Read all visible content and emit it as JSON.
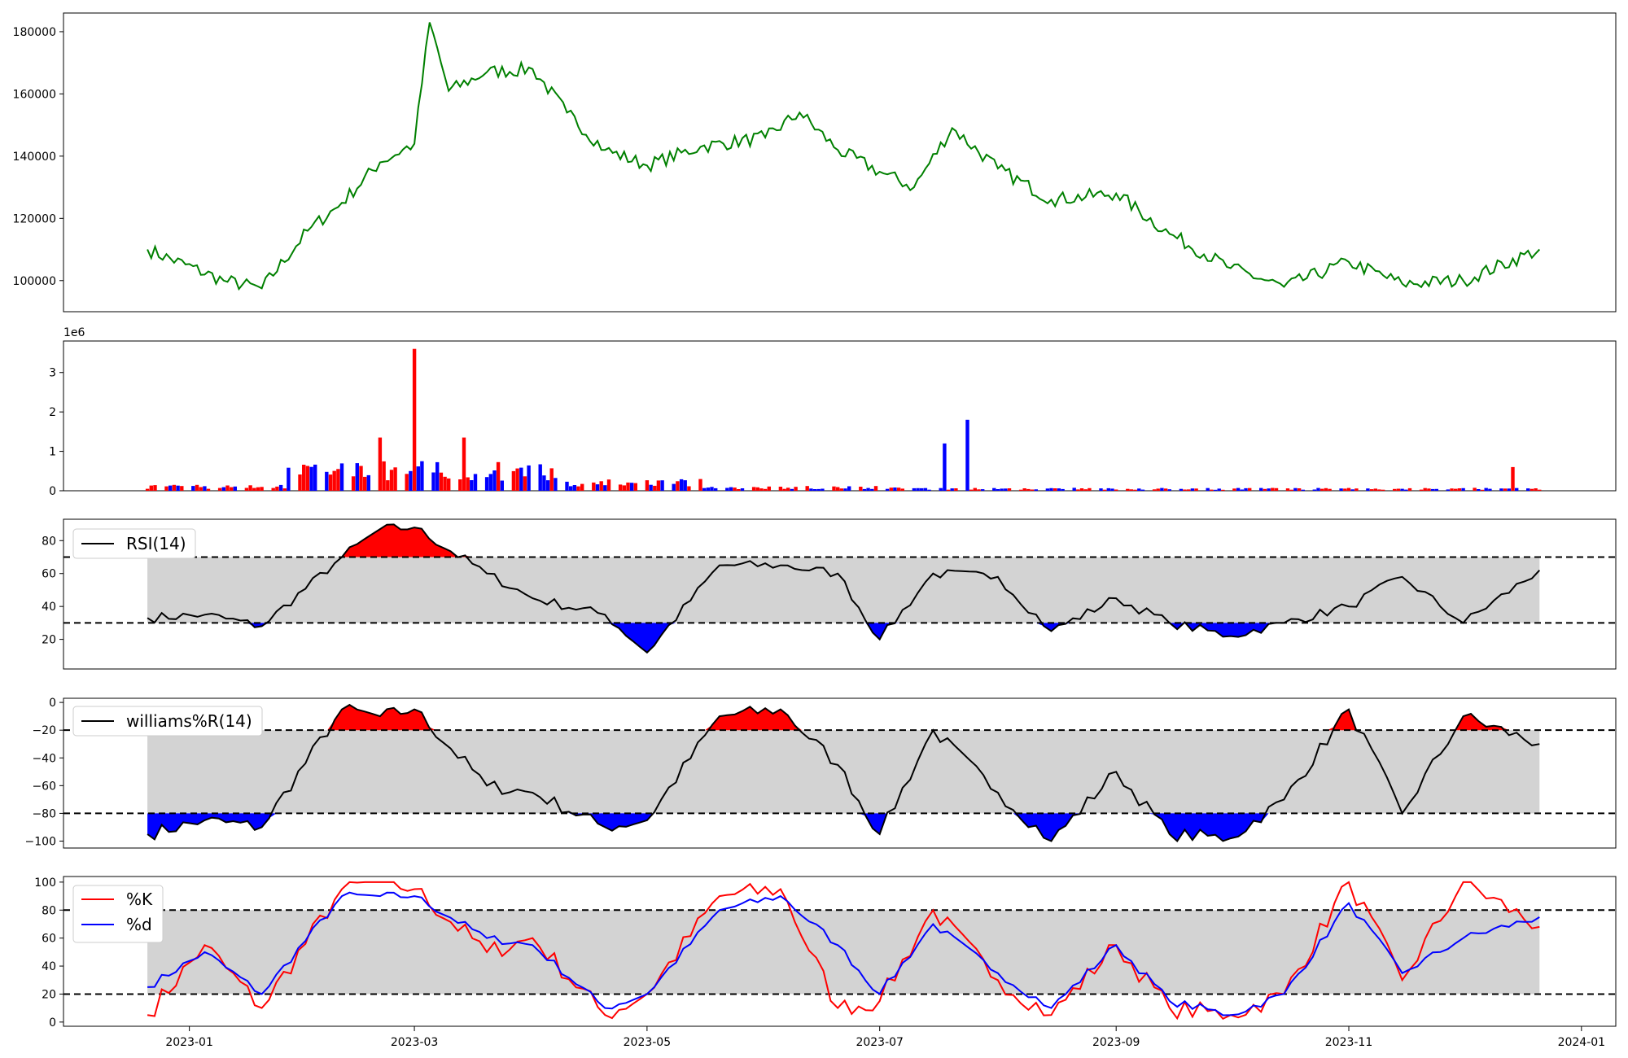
{
  "chart_data": [
    {
      "panel": "price",
      "type": "line",
      "x_dates": [
        "2022-12-21",
        "2023-01-10",
        "2023-01-20",
        "2023-02-01",
        "2023-02-10",
        "2023-02-20",
        "2023-03-01",
        "2023-03-05",
        "2023-03-10",
        "2023-03-20",
        "2023-04-01",
        "2023-04-10",
        "2023-04-20",
        "2023-05-01",
        "2023-05-15",
        "2023-06-01",
        "2023-06-10",
        "2023-06-20",
        "2023-07-01",
        "2023-07-10",
        "2023-07-20",
        "2023-08-01",
        "2023-08-15",
        "2023-09-01",
        "2023-09-15",
        "2023-10-01",
        "2023-10-15",
        "2023-11-01",
        "2023-11-15",
        "2023-12-01",
        "2023-12-21"
      ],
      "values": [
        110000,
        100000,
        97500,
        116000,
        125000,
        138000,
        144000,
        183000,
        161000,
        167000,
        168000,
        154000,
        142000,
        137000,
        143000,
        146000,
        154000,
        142000,
        135000,
        130000,
        149000,
        136000,
        126000,
        128000,
        115000,
        104000,
        98000,
        106000,
        99000,
        100000,
        110000
      ],
      "color": "#008000",
      "ylim": [
        90000,
        186000
      ],
      "yticks": [
        "100000",
        "120000",
        "140000",
        "160000",
        "180000"
      ]
    },
    {
      "panel": "volume",
      "type": "bar",
      "offset_text": "1e6",
      "ylim": [
        0,
        3.8
      ],
      "yticks": [
        "0",
        "1",
        "2",
        "3"
      ],
      "colors": {
        "up": "#ff0000",
        "down": "#0000ff"
      },
      "highlights": [
        {
          "date": "2023-03-01",
          "value": 3.6,
          "color": "#ff0000"
        },
        {
          "date": "2023-07-24",
          "value": 1.8,
          "color": "#0000ff"
        },
        {
          "date": "2023-07-18",
          "value": 1.2,
          "color": "#0000ff"
        },
        {
          "date": "2023-02-20",
          "value": 1.35,
          "color": "#ff0000"
        },
        {
          "date": "2023-03-14",
          "value": 1.35,
          "color": "#ff0000"
        },
        {
          "date": "2023-12-14",
          "value": 0.6,
          "color": "#ff0000"
        }
      ]
    },
    {
      "panel": "rsi",
      "type": "line",
      "legend": "RSI(14)",
      "upper": 70,
      "lower": 30,
      "ylim": [
        2,
        93
      ],
      "yticks": [
        "20",
        "40",
        "60",
        "80"
      ],
      "x_dates": [
        "2022-12-21",
        "2023-01-05",
        "2023-01-20",
        "2023-02-10",
        "2023-02-20",
        "2023-03-01",
        "2023-03-20",
        "2023-04-01",
        "2023-04-20",
        "2023-05-01",
        "2023-05-20",
        "2023-06-05",
        "2023-06-20",
        "2023-07-01",
        "2023-07-15",
        "2023-08-01",
        "2023-08-15",
        "2023-09-01",
        "2023-09-15",
        "2023-10-01",
        "2023-10-15",
        "2023-11-01",
        "2023-11-15",
        "2023-12-01",
        "2023-12-21"
      ],
      "values": [
        33,
        35,
        28,
        70,
        87,
        88,
        60,
        45,
        35,
        12,
        65,
        65,
        60,
        20,
        60,
        58,
        25,
        45,
        30,
        22,
        30,
        40,
        58,
        30,
        62
      ],
      "fill_colors": {
        "above": "#ff0000",
        "below": "#0000ff",
        "band": "#d3d3d3"
      }
    },
    {
      "panel": "williams",
      "type": "line",
      "legend": "williams%R(14)",
      "upper": -20,
      "lower": -80,
      "ylim": [
        -105,
        3
      ],
      "yticks": [
        "0",
        "−20",
        "−40",
        "−60",
        "−80",
        "−100"
      ],
      "x_dates": [
        "2022-12-21",
        "2023-01-05",
        "2023-01-20",
        "2023-02-10",
        "2023-02-20",
        "2023-03-01",
        "2023-03-20",
        "2023-04-01",
        "2023-04-20",
        "2023-05-01",
        "2023-05-20",
        "2023-06-05",
        "2023-06-20",
        "2023-07-01",
        "2023-07-15",
        "2023-08-01",
        "2023-08-15",
        "2023-09-01",
        "2023-09-15",
        "2023-10-01",
        "2023-10-15",
        "2023-11-01",
        "2023-11-15",
        "2023-12-01",
        "2023-12-21"
      ],
      "values": [
        -95,
        -85,
        -90,
        -5,
        -10,
        -5,
        -60,
        -65,
        -90,
        -85,
        -10,
        -5,
        -45,
        -95,
        -20,
        -65,
        -100,
        -50,
        -95,
        -98,
        -70,
        -5,
        -80,
        -10,
        -30
      ],
      "fill_colors": {
        "above": "#ff0000",
        "below": "#0000ff",
        "band": "#d3d3d3"
      }
    },
    {
      "panel": "stochastic",
      "type": "line",
      "legend": [
        "%K",
        "%d"
      ],
      "upper": 80,
      "lower": 20,
      "ylim": [
        -3,
        104
      ],
      "yticks": [
        "0",
        "20",
        "40",
        "60",
        "80",
        "100"
      ],
      "x_dates": [
        "2022-12-21",
        "2023-01-05",
        "2023-01-20",
        "2023-02-10",
        "2023-02-20",
        "2023-03-01",
        "2023-03-20",
        "2023-04-01",
        "2023-04-20",
        "2023-05-01",
        "2023-05-20",
        "2023-06-05",
        "2023-06-20",
        "2023-07-01",
        "2023-07-15",
        "2023-08-01",
        "2023-08-15",
        "2023-09-01",
        "2023-09-15",
        "2023-10-01",
        "2023-10-15",
        "2023-11-01",
        "2023-11-15",
        "2023-12-01",
        "2023-12-21"
      ],
      "series": [
        {
          "name": "%K",
          "color": "#ff0000",
          "values": [
            5,
            55,
            10,
            95,
            100,
            95,
            50,
            60,
            5,
            20,
            90,
            95,
            10,
            15,
            80,
            30,
            5,
            55,
            10,
            5,
            20,
            100,
            30,
            100,
            68
          ]
        },
        {
          "name": "%d",
          "color": "#0000ff",
          "values": [
            25,
            50,
            20,
            90,
            90,
            90,
            60,
            55,
            10,
            20,
            80,
            90,
            55,
            20,
            70,
            35,
            10,
            55,
            15,
            5,
            20,
            85,
            35,
            60,
            75
          ]
        }
      ]
    }
  ],
  "x_axis": {
    "ticks": [
      {
        "date": "2023-01-01",
        "label": "2023-01"
      },
      {
        "date": "2023-03-01",
        "label": "2023-03"
      },
      {
        "date": "2023-05-01",
        "label": "2023-05"
      },
      {
        "date": "2023-07-01",
        "label": "2023-07"
      },
      {
        "date": "2023-09-01",
        "label": "2023-09"
      },
      {
        "date": "2023-11-01",
        "label": "2023-11"
      },
      {
        "date": "2024-01-01",
        "label": "2024-01"
      }
    ]
  }
}
